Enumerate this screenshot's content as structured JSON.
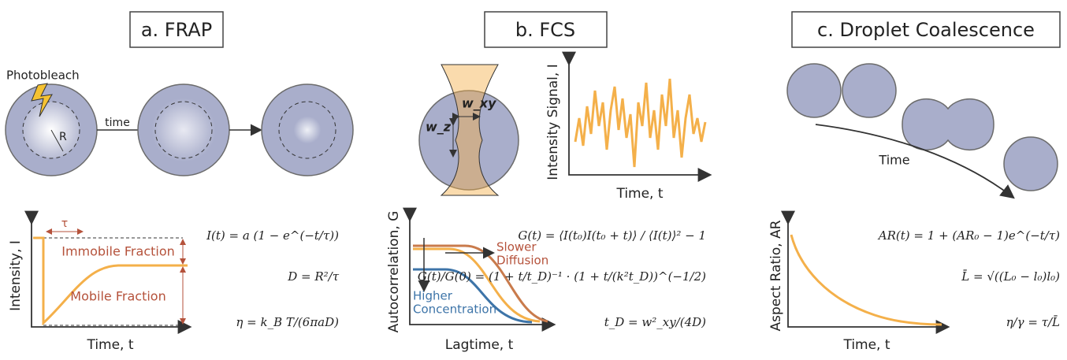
{
  "panel_a": {
    "title": "a. FRAP",
    "photobleach": "Photobleach",
    "radius": "R",
    "time_arrow": "time",
    "tau": "τ",
    "immobile": "Immobile Fraction",
    "mobile": "Mobile Fraction",
    "y_axis": "Intensity, I",
    "x_axis": "Time, t",
    "equations": [
      "I(t) = a (1 − e^(−t/τ))",
      "D = R²/τ",
      "η = k_B T/(6πaD)"
    ]
  },
  "panel_b": {
    "title": "b. FCS",
    "w_xy": "w_xy",
    "w_z": "w_z",
    "signal_y_axis": "Intensity Signal, I",
    "signal_x_axis": "Time, t",
    "y_axis": "Autocorrelation, G",
    "x_axis": "Lagtime, t",
    "slower": [
      "Slower",
      "Diffusion"
    ],
    "higher": [
      "Higher",
      "Concentration"
    ],
    "equations": [
      "G(t) = ⟨I(t₀)I(t₀ + t)⟩ / ⟨I(t)⟩² − 1",
      "G(t)/G(0) = (1 + t/t_D)⁻¹ · (1 + t/(k²t_D))^(−1/2)",
      "t_D = w²_xy/(4D)"
    ]
  },
  "panel_c": {
    "title": "c. Droplet Coalescence",
    "time_arrow": "Time",
    "y_axis": "Aspect Ratio, AR",
    "x_axis": "Time, t",
    "equations": [
      "AR(t) = 1 + (AR₀ − 1)e^(−t/τ)",
      "L̄ = √((L₀ − l₀)l₀)",
      "η/γ = τ/L̄"
    ]
  }
}
